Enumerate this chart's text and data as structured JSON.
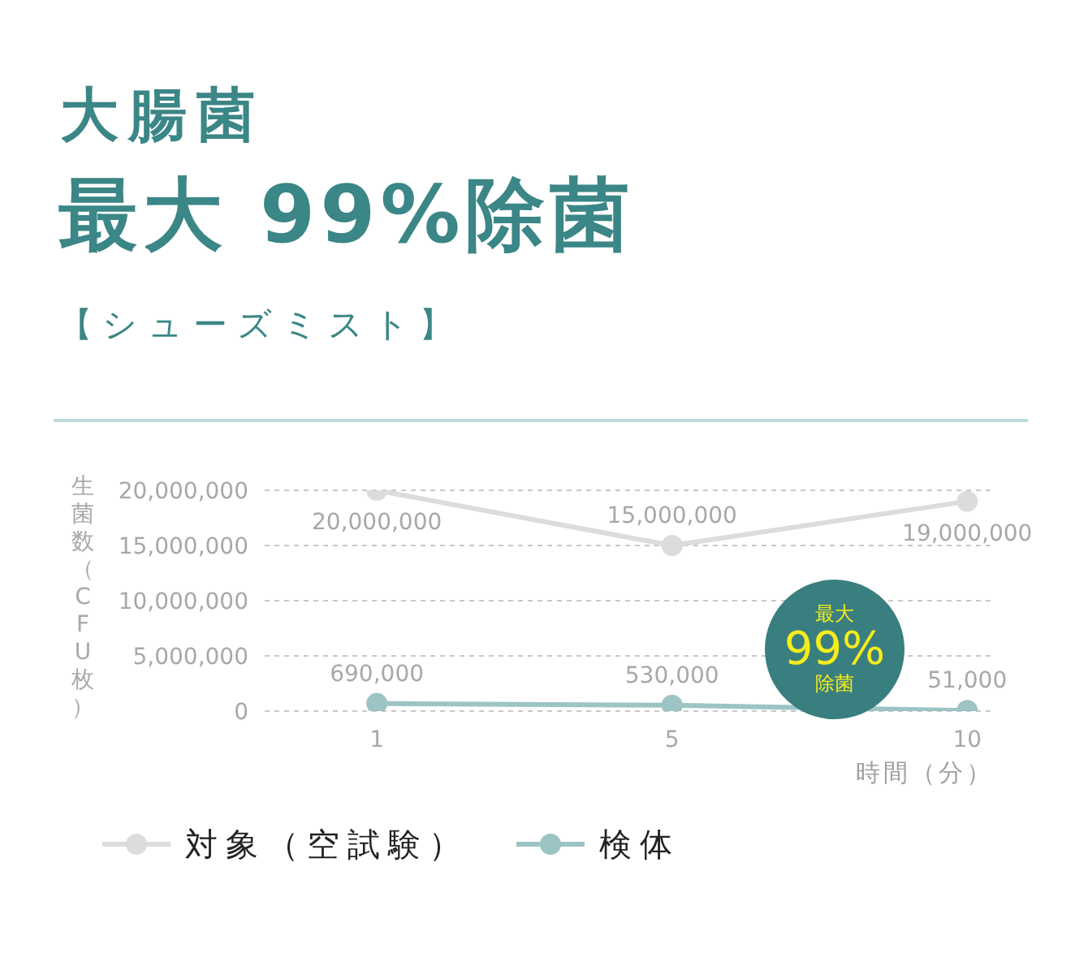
{
  "chart_data": {
    "type": "line",
    "title": "大腸菌",
    "subtitle": "最大 99%除菌",
    "annotations": [
      "【シューズミスト】",
      "最大\n99%\n除菌"
    ],
    "xlabel": "時間（分）",
    "ylabel": "生菌数（CFU枚）",
    "categories": [
      "1",
      "5",
      "10"
    ],
    "series": [
      {
        "name": "対象（空試験）",
        "color": "#dcdcdc",
        "values": [
          20000000,
          15000000,
          19000000
        ],
        "value_labels": [
          "20,000,000",
          "15,000,000",
          "19,000,000"
        ]
      },
      {
        "name": "検体",
        "color": "#9cc4c4",
        "values": [
          690000,
          530000,
          51000
        ],
        "value_labels": [
          "690,000",
          "530,000",
          "51,000"
        ]
      }
    ],
    "ylim": [
      0,
      20000000
    ],
    "yticks": [
      0,
      {
        "value": 5000000,
        "label": "5,000,000"
      },
      {
        "value": 10000000,
        "label": "10,000,000"
      },
      {
        "value": 15000000,
        "label": "15,000,000"
      },
      {
        "value": 20000000,
        "label": "20,000,000"
      }
    ],
    "grid": "y",
    "legend": "bottom left",
    "marker": "circle",
    "line_style": "solid"
  }
}
